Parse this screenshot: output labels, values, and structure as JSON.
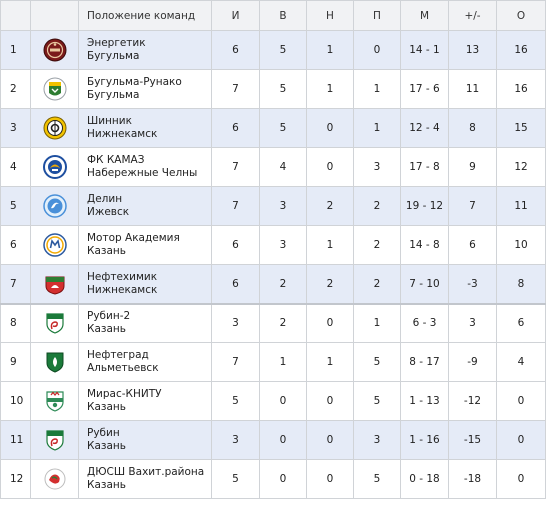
{
  "header": {
    "pos": "",
    "logo": "",
    "team": "Положение команд",
    "games": "И",
    "wins": "В",
    "draws": "Н",
    "losses": "П",
    "goals": "М",
    "diff": "+/-",
    "points": "О"
  },
  "rows": [
    {
      "pos": "1",
      "name": "Энергетик",
      "city": "Бугульма",
      "games": "6",
      "wins": "5",
      "draws": "1",
      "losses": "0",
      "goals": "14 - 1",
      "diff": "13",
      "points": "16",
      "logo_icon": "energetik-logo-icon",
      "logo_color": "#7a1a1a"
    },
    {
      "pos": "2",
      "name": "Бугульма-Рунако",
      "city": "Бугульма",
      "games": "7",
      "wins": "5",
      "draws": "1",
      "losses": "1",
      "goals": "17 - 6",
      "diff": "11",
      "points": "16",
      "logo_icon": "bugulma-runako-logo-icon",
      "logo_color": "#2e7d32"
    },
    {
      "pos": "3",
      "name": "Шинник",
      "city": "Нижнекамск",
      "games": "6",
      "wins": "5",
      "draws": "0",
      "losses": "1",
      "goals": "12 - 4",
      "diff": "8",
      "points": "15",
      "logo_icon": "shinnik-logo-icon",
      "logo_color": "#f2c200"
    },
    {
      "pos": "4",
      "name": "ФК КАМАЗ",
      "city": "Набережные Челны",
      "games": "7",
      "wins": "4",
      "draws": "0",
      "losses": "3",
      "goals": "17 - 8",
      "diff": "9",
      "points": "12",
      "logo_icon": "kamaz-logo-icon",
      "logo_color": "#1e4fa0"
    },
    {
      "pos": "5",
      "name": "Делин",
      "city": "Ижевск",
      "games": "7",
      "wins": "3",
      "draws": "2",
      "losses": "2",
      "goals": "19 - 12",
      "diff": "7",
      "points": "11",
      "logo_icon": "delin-logo-icon",
      "logo_color": "#4a90d9"
    },
    {
      "pos": "6",
      "name": "Мотор Академия",
      "city": "Казань",
      "games": "6",
      "wins": "3",
      "draws": "1",
      "losses": "2",
      "goals": "14 - 8",
      "diff": "6",
      "points": "10",
      "logo_icon": "motor-akademiya-logo-icon",
      "logo_color": "#2c5aa0"
    },
    {
      "pos": "7",
      "name": "Нефтехимик",
      "city": "Нижнекамск",
      "games": "6",
      "wins": "2",
      "draws": "2",
      "losses": "2",
      "goals": "7 - 10",
      "diff": "-3",
      "points": "8",
      "logo_icon": "neftekhimik-logo-icon",
      "logo_color": "#d32f2f"
    },
    {
      "pos": "8",
      "name": "Рубин-2",
      "city": "Казань",
      "games": "3",
      "wins": "2",
      "draws": "0",
      "losses": "1",
      "goals": "6 - 3",
      "diff": "3",
      "points": "6",
      "logo_icon": "rubin-2-logo-icon",
      "logo_color": "#1b7a3a"
    },
    {
      "pos": "9",
      "name": "Нефтеград",
      "city": "Альметьевск",
      "games": "7",
      "wins": "1",
      "draws": "1",
      "losses": "5",
      "goals": "8 - 17",
      "diff": "-9",
      "points": "4",
      "logo_icon": "neftegrad-logo-icon",
      "logo_color": "#1b7a3a"
    },
    {
      "pos": "10",
      "name": "Мирас-КНИТУ",
      "city": "Казань",
      "games": "5",
      "wins": "0",
      "draws": "0",
      "losses": "5",
      "goals": "1 - 13",
      "diff": "-12",
      "points": "0",
      "logo_icon": "miras-knitu-logo-icon",
      "logo_color": "#2e8b57"
    },
    {
      "pos": "11",
      "name": "Рубин",
      "city": "Казань",
      "games": "3",
      "wins": "0",
      "draws": "0",
      "losses": "3",
      "goals": "1 - 16",
      "diff": "-15",
      "points": "0",
      "logo_icon": "rubin-logo-icon",
      "logo_color": "#1b7a3a"
    },
    {
      "pos": "12",
      "name": "ДЮСШ Вахит.района",
      "city": "Казань",
      "games": "5",
      "wins": "0",
      "draws": "0",
      "losses": "5",
      "goals": "0 - 18",
      "diff": "-18",
      "points": "0",
      "logo_icon": "dyussh-vakhitovskogo-logo-icon",
      "logo_color": "#d32f2f"
    }
  ]
}
